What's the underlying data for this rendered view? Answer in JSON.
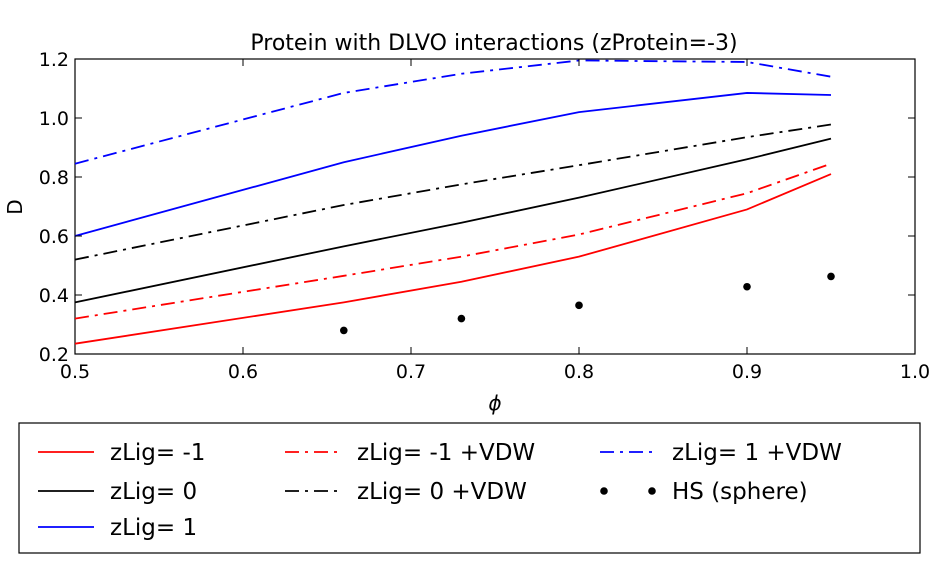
{
  "chart_data": {
    "type": "line",
    "title": "Protein with DLVO interactions (zProtein=-3)",
    "xlabel": "ϕ",
    "ylabel": "D",
    "xlim": [
      0.5,
      1.0
    ],
    "ylim": [
      0.2,
      1.2
    ],
    "xticks": [
      "0.5",
      "0.6",
      "0.7",
      "0.8",
      "0.9",
      "1.0"
    ],
    "yticks": [
      "0.2",
      "0.4",
      "0.6",
      "0.8",
      "1.0",
      "1.2"
    ],
    "grid": false,
    "legend_position": "below",
    "series": [
      {
        "name": "zLig= -1",
        "color": "#ff0000",
        "style": "solid",
        "x": [
          0.5,
          0.66,
          0.73,
          0.8,
          0.9,
          0.95
        ],
        "y": [
          0.235,
          0.375,
          0.445,
          0.53,
          0.69,
          0.81
        ]
      },
      {
        "name": "zLig= 0",
        "color": "#000000",
        "style": "solid",
        "x": [
          0.5,
          0.66,
          0.73,
          0.8,
          0.9,
          0.95
        ],
        "y": [
          0.375,
          0.565,
          0.645,
          0.73,
          0.86,
          0.93
        ]
      },
      {
        "name": "zLig= 1",
        "color": "#0000ff",
        "style": "solid",
        "x": [
          0.5,
          0.66,
          0.73,
          0.8,
          0.9,
          0.95
        ],
        "y": [
          0.6,
          0.85,
          0.94,
          1.02,
          1.085,
          1.078
        ]
      },
      {
        "name": "zLig= -1 +VDW",
        "color": "#ff0000",
        "style": "dashdot",
        "x": [
          0.5,
          0.66,
          0.73,
          0.8,
          0.9,
          0.95
        ],
        "y": [
          0.32,
          0.465,
          0.53,
          0.605,
          0.745,
          0.845
        ]
      },
      {
        "name": "zLig= 0 +VDW",
        "color": "#000000",
        "style": "dashdot",
        "x": [
          0.5,
          0.66,
          0.73,
          0.8,
          0.9,
          0.95
        ],
        "y": [
          0.52,
          0.705,
          0.775,
          0.84,
          0.935,
          0.978
        ]
      },
      {
        "name": "zLig= 1 +VDW",
        "color": "#0000ff",
        "style": "dashdot",
        "x": [
          0.5,
          0.66,
          0.73,
          0.8,
          0.9,
          0.95
        ],
        "y": [
          0.845,
          1.085,
          1.15,
          1.195,
          1.19,
          1.14
        ]
      },
      {
        "name": "HS (sphere)",
        "color": "#000000",
        "style": "marker",
        "x": [
          0.66,
          0.73,
          0.8,
          0.9,
          0.95
        ],
        "y": [
          0.28,
          0.32,
          0.365,
          0.428,
          0.463
        ]
      }
    ]
  }
}
